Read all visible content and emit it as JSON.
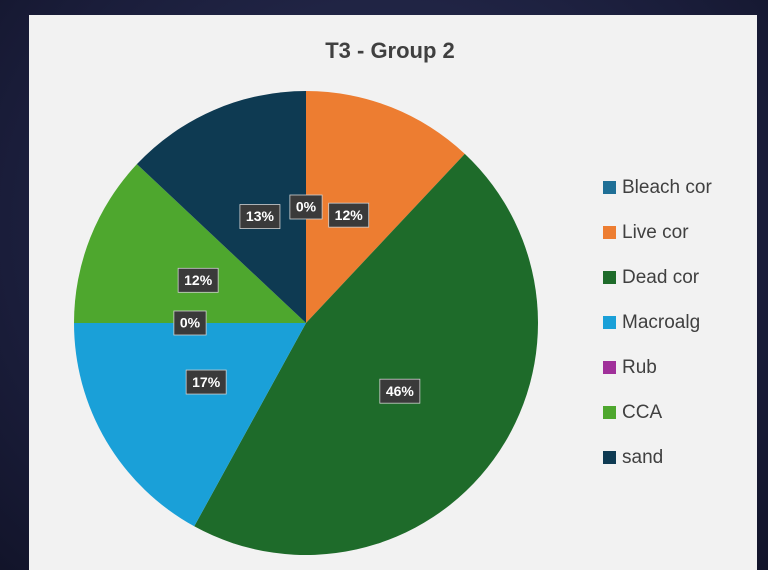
{
  "chart_data": {
    "type": "pie",
    "title": "T3 - Group 2",
    "categories": [
      "Bleach cor",
      "Live cor",
      "Dead cor",
      "Macroalg",
      "Rub",
      "CCA",
      "sand"
    ],
    "values": [
      0,
      12,
      46,
      17,
      0,
      12,
      13
    ],
    "value_labels": [
      "0%",
      "12%",
      "46%",
      "17%",
      "0%",
      "12%",
      "13%"
    ],
    "colors": [
      "#1f6f96",
      "#ed7d31",
      "#1e6b2a",
      "#1aa0d8",
      "#a0309a",
      "#4ea72e",
      "#0e3a52"
    ],
    "legend": "right"
  }
}
